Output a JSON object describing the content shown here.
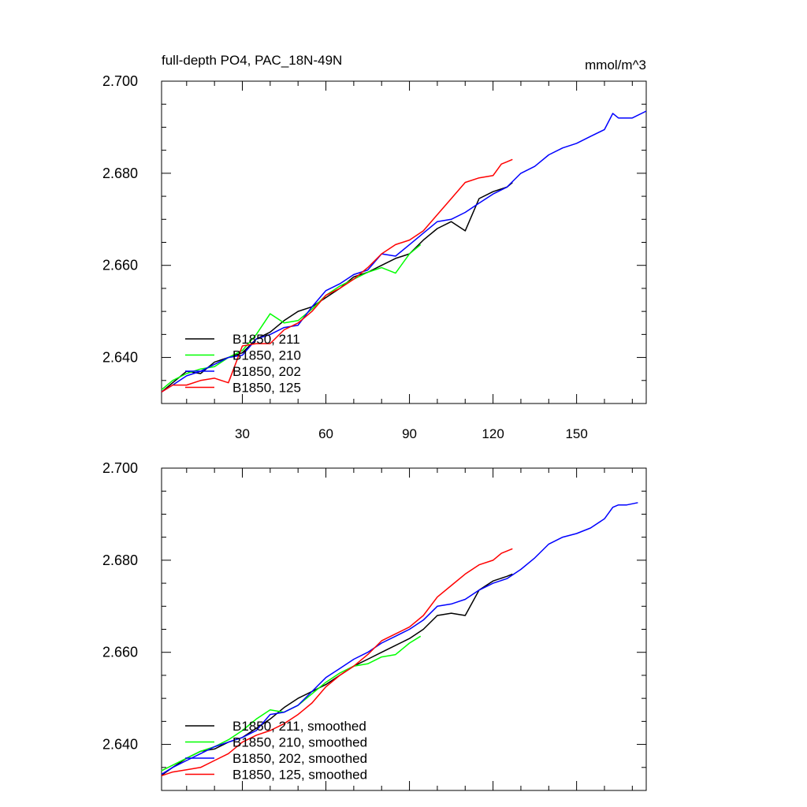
{
  "chart_data": [
    {
      "type": "line",
      "title": "full-depth PO4, PAC_18N-49N",
      "units": "mmol/m^3",
      "xlim": [
        1,
        175
      ],
      "ylim": [
        2.63,
        2.7
      ],
      "xticks": [
        30,
        60,
        90,
        120,
        150
      ],
      "xtick_labels": [
        "30",
        "60",
        "90",
        "120",
        "150"
      ],
      "yticks": [
        2.64,
        2.66,
        2.68,
        2.7
      ],
      "ytick_labels": [
        "2.640",
        "2.660",
        "2.680",
        "2.700"
      ],
      "grid": false,
      "legend_position": "bottom-left",
      "series": [
        {
          "name": "B1850, 211",
          "color": "#000000",
          "x": [
            1,
            5,
            10,
            15,
            20,
            25,
            30,
            35,
            40,
            45,
            50,
            55,
            60,
            65,
            70,
            75,
            80,
            85,
            90,
            95,
            100,
            105,
            110,
            115,
            120,
            125,
            127
          ],
          "y": [
            2.6325,
            2.6345,
            2.637,
            2.6365,
            2.639,
            2.64,
            2.641,
            2.644,
            2.6455,
            2.648,
            2.65,
            2.651,
            2.653,
            2.655,
            2.6575,
            2.6585,
            2.66,
            2.6615,
            2.6625,
            2.6655,
            2.668,
            2.6695,
            2.6675,
            2.6745,
            2.676,
            2.677,
            2.678
          ]
        },
        {
          "name": "B1850, 210",
          "color": "#00ff00",
          "x": [
            1,
            5,
            10,
            15,
            20,
            25,
            30,
            35,
            40,
            45,
            50,
            55,
            60,
            65,
            70,
            75,
            80,
            85,
            90,
            94
          ],
          "y": [
            2.633,
            2.635,
            2.6365,
            2.6375,
            2.638,
            2.64,
            2.6415,
            2.645,
            2.6495,
            2.6475,
            2.648,
            2.6505,
            2.6535,
            2.6555,
            2.657,
            2.6585,
            2.6595,
            2.6583,
            2.6625,
            2.6645
          ]
        },
        {
          "name": "B1850, 202",
          "color": "#0000ff",
          "x": [
            1,
            5,
            10,
            15,
            20,
            25,
            30,
            35,
            40,
            45,
            50,
            55,
            60,
            65,
            70,
            75,
            80,
            85,
            90,
            95,
            100,
            105,
            110,
            115,
            120,
            125,
            130,
            135,
            140,
            145,
            150,
            155,
            160,
            163,
            165,
            170,
            175
          ],
          "y": [
            2.6325,
            2.634,
            2.636,
            2.637,
            2.6385,
            2.64,
            2.6405,
            2.644,
            2.645,
            2.6465,
            2.647,
            2.651,
            2.6545,
            2.656,
            2.658,
            2.659,
            2.6625,
            2.662,
            2.6645,
            2.667,
            2.6695,
            2.67,
            2.6715,
            2.6735,
            2.6755,
            2.677,
            2.68,
            2.6815,
            2.684,
            2.6855,
            2.6865,
            2.688,
            2.6895,
            2.693,
            2.692,
            2.692,
            2.6935
          ]
        },
        {
          "name": "B1850, 125",
          "color": "#ff0000",
          "x": [
            1,
            5,
            10,
            15,
            20,
            25,
            30,
            35,
            40,
            45,
            50,
            55,
            60,
            65,
            70,
            75,
            80,
            85,
            90,
            95,
            100,
            105,
            110,
            115,
            120,
            123,
            125,
            127
          ],
          "y": [
            2.6325,
            2.634,
            2.634,
            2.635,
            2.6355,
            2.6345,
            2.6425,
            2.643,
            2.643,
            2.646,
            2.6475,
            2.65,
            2.6535,
            2.655,
            2.657,
            2.6595,
            2.6625,
            2.6645,
            2.6655,
            2.6675,
            2.671,
            2.6745,
            2.678,
            2.679,
            2.6795,
            2.682,
            2.6825,
            2.683
          ]
        }
      ]
    },
    {
      "type": "line",
      "xlim": [
        1,
        175
      ],
      "ylim": [
        2.63,
        2.7
      ],
      "xticks": [
        30,
        60,
        90,
        120,
        150
      ],
      "xtick_labels": [],
      "yticks": [
        2.64,
        2.66,
        2.68,
        2.7
      ],
      "ytick_labels": [
        "2.640",
        "2.660",
        "2.680",
        "2.700"
      ],
      "grid": false,
      "legend_position": "bottom-left",
      "series": [
        {
          "name": "B1850, 211, smoothed",
          "color": "#000000",
          "x": [
            1,
            5,
            10,
            15,
            20,
            25,
            30,
            35,
            40,
            45,
            50,
            55,
            60,
            65,
            70,
            75,
            80,
            85,
            90,
            95,
            100,
            105,
            110,
            115,
            120,
            125,
            127
          ],
          "y": [
            2.6333,
            2.635,
            2.637,
            2.6385,
            2.639,
            2.6405,
            2.6415,
            2.6435,
            2.6455,
            2.648,
            2.65,
            2.6515,
            2.653,
            2.655,
            2.657,
            2.6585,
            2.66,
            2.6615,
            2.663,
            2.665,
            2.668,
            2.6685,
            2.668,
            2.6735,
            2.6755,
            2.6765,
            2.677
          ]
        },
        {
          "name": "B1850, 210, smoothed",
          "color": "#00ff00",
          "x": [
            1,
            5,
            10,
            15,
            20,
            25,
            30,
            35,
            40,
            45,
            50,
            55,
            60,
            65,
            70,
            75,
            80,
            85,
            90,
            94
          ],
          "y": [
            2.6343,
            2.6355,
            2.637,
            2.6385,
            2.6395,
            2.641,
            2.643,
            2.6455,
            2.6475,
            2.647,
            2.6485,
            2.651,
            2.6535,
            2.6555,
            2.657,
            2.6575,
            2.659,
            2.6595,
            2.662,
            2.6635
          ]
        },
        {
          "name": "B1850, 202, smoothed",
          "color": "#0000ff",
          "x": [
            1,
            5,
            10,
            15,
            20,
            25,
            30,
            35,
            40,
            45,
            50,
            55,
            60,
            65,
            70,
            75,
            80,
            85,
            90,
            95,
            100,
            105,
            110,
            115,
            120,
            125,
            130,
            135,
            140,
            145,
            150,
            155,
            160,
            163,
            165,
            168,
            172
          ],
          "y": [
            2.6335,
            2.635,
            2.6365,
            2.638,
            2.6395,
            2.6405,
            2.6415,
            2.643,
            2.6465,
            2.647,
            2.6485,
            2.6515,
            2.6545,
            2.6565,
            2.6585,
            2.66,
            2.662,
            2.6635,
            2.665,
            2.667,
            2.67,
            2.6705,
            2.6715,
            2.6735,
            2.675,
            2.676,
            2.678,
            2.6805,
            2.6835,
            2.685,
            2.6858,
            2.687,
            2.689,
            2.6915,
            2.692,
            2.692,
            2.6925
          ]
        },
        {
          "name": "B1850, 125, smoothed",
          "color": "#ff0000",
          "x": [
            1,
            5,
            10,
            15,
            20,
            25,
            30,
            35,
            40,
            45,
            50,
            55,
            60,
            65,
            70,
            75,
            80,
            85,
            90,
            95,
            100,
            105,
            110,
            115,
            120,
            123,
            125,
            127
          ],
          "y": [
            2.6332,
            2.634,
            2.6345,
            2.635,
            2.6365,
            2.638,
            2.6405,
            2.642,
            2.643,
            2.6445,
            2.6465,
            2.649,
            2.6525,
            2.655,
            2.657,
            2.6595,
            2.6625,
            2.664,
            2.6655,
            2.668,
            2.672,
            2.6745,
            2.677,
            2.679,
            2.68,
            2.6815,
            2.682,
            2.6825
          ]
        }
      ]
    }
  ]
}
